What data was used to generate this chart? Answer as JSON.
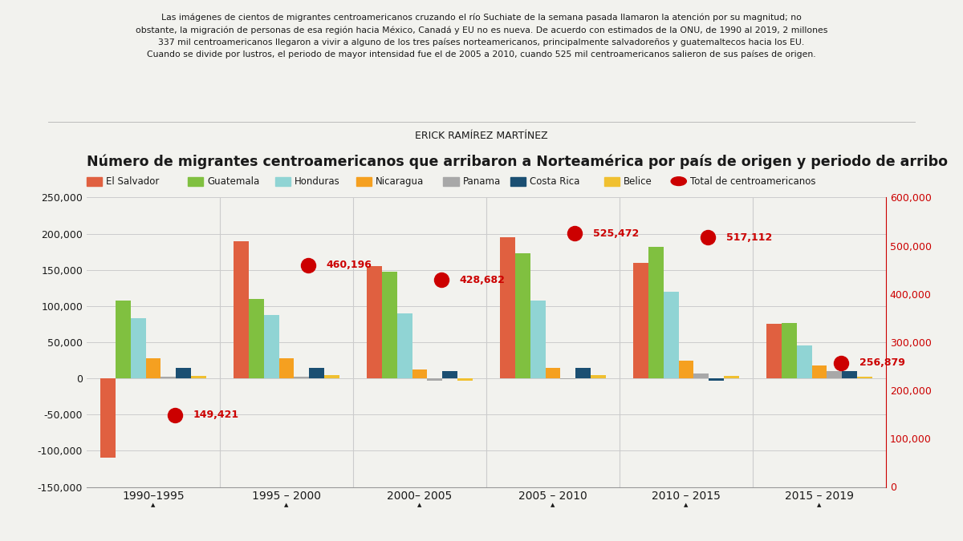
{
  "title": "Número de migrantes centroamericanos que arribaron a Norteamérica por país de origen y periodo de arribo",
  "subtitle_lines": [
    "Las imágenes de cientos de migrantes centroamericanos cruzando el río Suchiate de la semana pasada llamaron la atención por su magnitud; no",
    "obstante, la migración de personas de esa región hacia México, Canadá y EU no es nueva. De acuerdo con estimados de la ONU, de 1990 al 2019, 2 millones",
    "337 mil centroamericanos llegaron a vivir a alguno de los tres países norteamericanos, principalmente salvadoreños y guatemaltecos hacia los EU.",
    "Cuando se divide por lustros, el periodo de mayor intensidad fue el de 2005 a 2010, cuando 525 mil centroamericanos salieron de sus países de origen."
  ],
  "author": "ERICK RAMÍREZ MARTÍNEZ",
  "periods": [
    "1990–1995",
    "1995 – 2000",
    "2000– 2005",
    "2005 – 2010",
    "2010 – 2015",
    "2015 – 2019"
  ],
  "categories": [
    "El Salvador",
    "Guatemala",
    "Honduras",
    "Nicaragua",
    "Panama",
    "Costa Rica",
    "Belice"
  ],
  "colors": [
    "#E06040",
    "#80C040",
    "#90D4D4",
    "#F5A020",
    "#A8A8A8",
    "#1B4F72",
    "#F0C030"
  ],
  "data": {
    "El Salvador": [
      -110000,
      190000,
      155000,
      195000,
      160000,
      75000
    ],
    "Guatemala": [
      107000,
      110000,
      147000,
      173000,
      182000,
      77000
    ],
    "Honduras": [
      83000,
      88000,
      90000,
      107000,
      120000,
      45000
    ],
    "Nicaragua": [
      28000,
      28000,
      12000,
      15000,
      25000,
      18000
    ],
    "Panama": [
      2000,
      2000,
      -3000,
      -1000,
      7000,
      10000
    ],
    "Costa Rica": [
      14000,
      14000,
      10000,
      15000,
      -3000,
      10000
    ],
    "Belice": [
      3000,
      5000,
      -3000,
      5000,
      3000,
      2000
    ]
  },
  "totals": [
    149421,
    460196,
    428682,
    525472,
    517112,
    256879
  ],
  "total_label": "Total de centroamericanos",
  "total_color": "#CC0000",
  "bg_color": "#F2F2EE",
  "ylim_left": [
    -150000,
    250000
  ],
  "ylim_right": [
    0,
    600000
  ],
  "grid_color": "#CCCCCC",
  "text_color": "#1A1A1A",
  "red_axis_color": "#CC0000",
  "left_yticks": [
    -150000,
    -100000,
    -50000,
    0,
    50000,
    100000,
    150000,
    200000,
    250000
  ],
  "right_yticks": [
    0,
    100000,
    200000,
    300000,
    400000,
    500000,
    600000
  ]
}
